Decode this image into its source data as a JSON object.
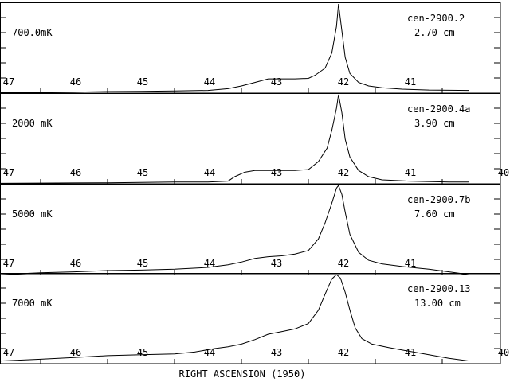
{
  "chart_data": {
    "type": "line",
    "xlabel": "RIGHT ASCENSION (1950)",
    "x_ticks": [
      47,
      46,
      45,
      44,
      43,
      42,
      41
    ],
    "x_reversed": true,
    "panels": [
      {
        "scale_label": "700.0mK",
        "source": "cen-2900.2",
        "wavelength": "2.70 cm",
        "extra_tick_label": "",
        "baseline_dashed": true,
        "curve": [
          [
            47.6,
            0.005
          ],
          [
            47.0,
            0.008
          ],
          [
            46.5,
            0.012
          ],
          [
            46.0,
            0.018
          ],
          [
            45.5,
            0.02
          ],
          [
            45.0,
            0.025
          ],
          [
            44.5,
            0.03
          ],
          [
            44.2,
            0.05
          ],
          [
            44.0,
            0.08
          ],
          [
            43.8,
            0.12
          ],
          [
            43.6,
            0.16
          ],
          [
            43.4,
            0.16
          ],
          [
            43.2,
            0.16
          ],
          [
            43.0,
            0.165
          ],
          [
            42.9,
            0.2
          ],
          [
            42.75,
            0.28
          ],
          [
            42.65,
            0.45
          ],
          [
            42.58,
            0.75
          ],
          [
            42.55,
            1.0
          ],
          [
            42.5,
            0.7
          ],
          [
            42.45,
            0.4
          ],
          [
            42.38,
            0.22
          ],
          [
            42.25,
            0.12
          ],
          [
            42.1,
            0.08
          ],
          [
            41.9,
            0.06
          ],
          [
            41.6,
            0.045
          ],
          [
            41.2,
            0.035
          ],
          [
            40.6,
            0.03
          ]
        ]
      },
      {
        "scale_label": "2000 mK",
        "source": "cen-2900.4a",
        "wavelength": "3.90 cm",
        "extra_tick_label": "40",
        "baseline_dashed": true,
        "curve": [
          [
            47.6,
            0.005
          ],
          [
            47.0,
            0.008
          ],
          [
            46.5,
            0.01
          ],
          [
            46.0,
            0.012
          ],
          [
            45.5,
            0.015
          ],
          [
            45.0,
            0.02
          ],
          [
            44.5,
            0.02
          ],
          [
            44.2,
            0.03
          ],
          [
            44.1,
            0.08
          ],
          [
            43.95,
            0.13
          ],
          [
            43.8,
            0.15
          ],
          [
            43.5,
            0.15
          ],
          [
            43.2,
            0.15
          ],
          [
            43.0,
            0.16
          ],
          [
            42.85,
            0.25
          ],
          [
            42.72,
            0.4
          ],
          [
            42.65,
            0.6
          ],
          [
            42.58,
            0.85
          ],
          [
            42.55,
            1.0
          ],
          [
            42.5,
            0.8
          ],
          [
            42.45,
            0.5
          ],
          [
            42.38,
            0.3
          ],
          [
            42.25,
            0.15
          ],
          [
            42.1,
            0.08
          ],
          [
            41.9,
            0.045
          ],
          [
            41.5,
            0.03
          ],
          [
            40.9,
            0.02
          ],
          [
            40.6,
            0.02
          ]
        ]
      },
      {
        "scale_label": "5000 mK",
        "source": "cen-2900.7b",
        "wavelength": "7.60 cm",
        "extra_tick_label": "",
        "baseline_dashed": true,
        "curve": [
          [
            47.6,
            0.0
          ],
          [
            47.0,
            0.02
          ],
          [
            46.5,
            0.03
          ],
          [
            46.0,
            0.045
          ],
          [
            45.5,
            0.05
          ],
          [
            45.0,
            0.06
          ],
          [
            44.5,
            0.08
          ],
          [
            44.2,
            0.11
          ],
          [
            44.0,
            0.14
          ],
          [
            43.8,
            0.18
          ],
          [
            43.6,
            0.2
          ],
          [
            43.4,
            0.21
          ],
          [
            43.2,
            0.23
          ],
          [
            43.0,
            0.27
          ],
          [
            42.85,
            0.4
          ],
          [
            42.75,
            0.58
          ],
          [
            42.65,
            0.8
          ],
          [
            42.58,
            0.97
          ],
          [
            42.55,
            1.0
          ],
          [
            42.5,
            0.9
          ],
          [
            42.45,
            0.7
          ],
          [
            42.38,
            0.45
          ],
          [
            42.25,
            0.25
          ],
          [
            42.1,
            0.16
          ],
          [
            41.9,
            0.12
          ],
          [
            41.6,
            0.09
          ],
          [
            41.2,
            0.06
          ],
          [
            40.9,
            0.03
          ],
          [
            40.6,
            0.0
          ]
        ]
      },
      {
        "scale_label": "7000 mK",
        "source": "cen-2900.13",
        "wavelength": "13.00 cm",
        "extra_tick_label": "40",
        "baseline_dashed": false,
        "curve": [
          [
            47.6,
            0.03
          ],
          [
            47.0,
            0.05
          ],
          [
            46.5,
            0.07
          ],
          [
            46.0,
            0.09
          ],
          [
            45.5,
            0.1
          ],
          [
            45.0,
            0.11
          ],
          [
            44.7,
            0.13
          ],
          [
            44.4,
            0.17
          ],
          [
            44.2,
            0.19
          ],
          [
            44.0,
            0.22
          ],
          [
            43.8,
            0.27
          ],
          [
            43.6,
            0.33
          ],
          [
            43.4,
            0.36
          ],
          [
            43.2,
            0.39
          ],
          [
            43.0,
            0.45
          ],
          [
            42.85,
            0.6
          ],
          [
            42.75,
            0.78
          ],
          [
            42.65,
            0.95
          ],
          [
            42.58,
            1.0
          ],
          [
            42.52,
            0.96
          ],
          [
            42.45,
            0.8
          ],
          [
            42.38,
            0.6
          ],
          [
            42.3,
            0.4
          ],
          [
            42.2,
            0.28
          ],
          [
            42.05,
            0.22
          ],
          [
            41.8,
            0.18
          ],
          [
            41.5,
            0.14
          ],
          [
            41.2,
            0.1
          ],
          [
            40.9,
            0.06
          ],
          [
            40.6,
            0.03
          ]
        ]
      }
    ]
  }
}
